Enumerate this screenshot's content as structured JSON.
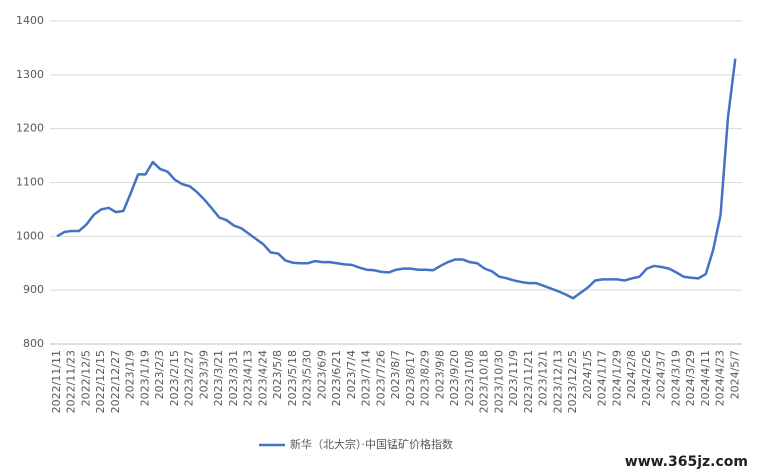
{
  "chart_data": {
    "type": "line",
    "categories": [
      "2022/11/11",
      null,
      "2022/11/23",
      null,
      "2022/12/5",
      null,
      "2022/12/15",
      null,
      "2022/12/27",
      null,
      "2023/1/9",
      null,
      "2023/1/19",
      null,
      "2023/2/3",
      null,
      "2023/2/15",
      null,
      "2023/2/27",
      null,
      "2023/3/9",
      null,
      "2023/3/21",
      null,
      "2023/3/31",
      null,
      "2023/4/13",
      null,
      "2023/4/24",
      null,
      "2023/5/8",
      null,
      "2023/5/18",
      null,
      "2023/5/30",
      null,
      "2023/6/9",
      null,
      "2023/6/21",
      null,
      "2023/7/4",
      null,
      "2023/7/14",
      null,
      "2023/7/26",
      null,
      "2023/8/7",
      null,
      "2023/8/17",
      null,
      "2023/8/29",
      null,
      "2023/9/8",
      null,
      "2023/9/20",
      null,
      "2023/10/8",
      null,
      "2023/10/18",
      null,
      "2023/10/30",
      null,
      "2023/11/9",
      null,
      "2023/11/21",
      null,
      "2023/12/1",
      null,
      "2023/12/13",
      null,
      "2023/12/25",
      null,
      "2024/1/5",
      null,
      "2024/1/17",
      null,
      "2024/1/29",
      null,
      "2024/2/8",
      null,
      "2024/2/26",
      null,
      "2024/3/7",
      null,
      "2024/3/19",
      null,
      "2024/3/29",
      null,
      "2024/4/11",
      null,
      "2024/4/23",
      null,
      "2024/5/7"
    ],
    "series": [
      {
        "name": "新华（北大宗）·中国锰矿价格指数",
        "color": "#4472c4",
        "values": [
          1000,
          1008,
          1010,
          1010,
          1022,
          1040,
          1050,
          1053,
          1045,
          1047,
          1080,
          1115,
          1115,
          1138,
          1125,
          1120,
          1105,
          1097,
          1093,
          1082,
          1068,
          1052,
          1035,
          1030,
          1020,
          1015,
          1005,
          995,
          985,
          970,
          968,
          955,
          951,
          950,
          950,
          954,
          952,
          952,
          950,
          948,
          947,
          942,
          938,
          937,
          934,
          933,
          938,
          940,
          940,
          938,
          938,
          937,
          945,
          952,
          957,
          957,
          952,
          950,
          940,
          935,
          925,
          922,
          918,
          915,
          913,
          913,
          908,
          903,
          898,
          892,
          885,
          895,
          905,
          918,
          920,
          920,
          920,
          918,
          922,
          925,
          940,
          945,
          943,
          940,
          933,
          925,
          923,
          922,
          930,
          975,
          1040,
          1220,
          1330
        ]
      }
    ],
    "ylim": [
      800,
      1400
    ],
    "yticks": [
      800,
      900,
      1000,
      1100,
      1200,
      1300,
      1400
    ],
    "grid": true,
    "legend": "bottom"
  },
  "watermark": "www.365jz.com"
}
